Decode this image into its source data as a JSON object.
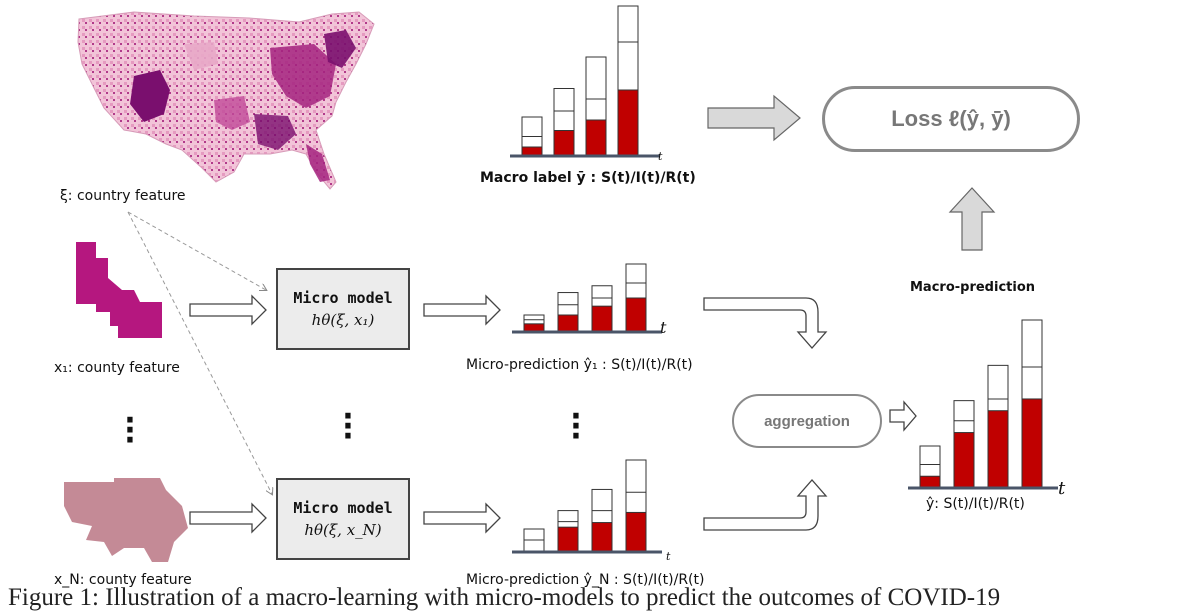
{
  "labels": {
    "country_feature": "ξ: country feature",
    "x1_feature": "x₁: county feature",
    "xn_feature": "x_N: county feature",
    "macro_label": "Macro label ȳ : S(t)/I(t)/R(t)",
    "micro_pred_1": "Micro-prediction ŷ₁ : S(t)/I(t)/R(t)",
    "micro_pred_n": "Micro-prediction ŷ_N : S(t)/I(t)/R(t)",
    "macro_prediction": "Macro-prediction",
    "y_hat": "ŷ: S(t)/I(t)/R(t)",
    "t_axis": "t"
  },
  "micro_model": {
    "title": "Micro model",
    "formula_1": "hθ(ξ, x₁)",
    "formula_n": "hθ(ξ, x_N)"
  },
  "loss": {
    "text": "Loss ℓ(ŷ, ȳ)"
  },
  "aggregation": {
    "text": "aggregation"
  },
  "caption": "Figure 1: Illustration of a macro-learning with micro-models to predict the outcomes of COVID-19",
  "colors": {
    "red": "#c00000",
    "map_dark": "#7a0f6e",
    "county1": "#b5177f",
    "countyN": "#c48a96",
    "gray_arrow": "#d9d9d9"
  },
  "bar_groups": {
    "macro_label": [
      {
        "total": 0.26,
        "red": 0.06,
        "mid": 0.13
      },
      {
        "total": 0.45,
        "red": 0.17,
        "mid": 0.3
      },
      {
        "total": 0.66,
        "red": 0.24,
        "mid": 0.38
      },
      {
        "total": 1.0,
        "red": 0.44,
        "mid": 0.76
      }
    ],
    "micro_1": [
      {
        "total": 0.25,
        "red": 0.12,
        "mid": 0.18
      },
      {
        "total": 0.58,
        "red": 0.25,
        "mid": 0.4
      },
      {
        "total": 0.68,
        "red": 0.38,
        "mid": 0.5
      },
      {
        "total": 1.0,
        "red": 0.5,
        "mid": 0.72
      }
    ],
    "micro_n": [
      {
        "total": 0.25,
        "red": 0.0,
        "mid": 0.13
      },
      {
        "total": 0.45,
        "red": 0.27,
        "mid": 0.33
      },
      {
        "total": 0.68,
        "red": 0.32,
        "mid": 0.45
      },
      {
        "total": 1.0,
        "red": 0.43,
        "mid": 0.65
      }
    ],
    "macro_pred": [
      {
        "total": 0.25,
        "red": 0.07,
        "mid": 0.14
      },
      {
        "total": 0.52,
        "red": 0.33,
        "mid": 0.4
      },
      {
        "total": 0.73,
        "red": 0.46,
        "mid": 0.53
      },
      {
        "total": 1.0,
        "red": 0.53,
        "mid": 0.72
      }
    ]
  }
}
